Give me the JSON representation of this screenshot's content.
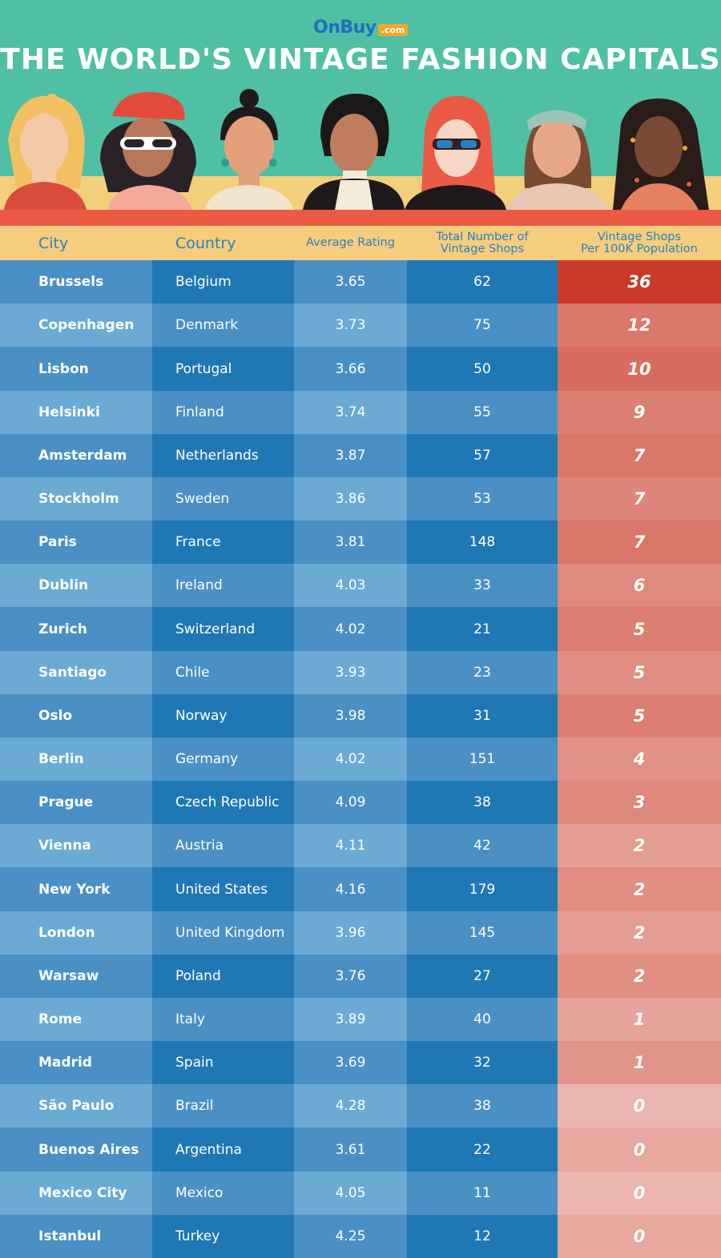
{
  "logo": {
    "brand": "OnBuy",
    "suffix": ".com"
  },
  "colors": {
    "teal": "#4fc0a4",
    "header_yellow": "#f6cd7c",
    "header_text": "#2b7fc1",
    "red_band": "#ea5a44",
    "blue_dark": "#1f78b4",
    "blue_mid": "#4a90c4",
    "blue_light": "#6aaad3"
  },
  "chart_data": {
    "type": "table",
    "title": "THE WORLD'S VINTAGE FASHION CAPITALS",
    "columns": [
      "City",
      "Country",
      "Average Rating",
      "Total Number of Vintage Shops",
      "Vintage Shops Per 100K Population"
    ],
    "column_lines": [
      [
        "City"
      ],
      [
        "Country"
      ],
      [
        "Average Rating"
      ],
      [
        "Total Number of",
        "Vintage Shops"
      ],
      [
        "Vintage Shops",
        "Per 100K Population"
      ]
    ],
    "rows": [
      {
        "city": "Brussels",
        "country": "Belgium",
        "rating": "3.65",
        "total": "62",
        "per100k": "36"
      },
      {
        "city": "Copenhagen",
        "country": "Denmark",
        "rating": "3.73",
        "total": "75",
        "per100k": "12"
      },
      {
        "city": "Lisbon",
        "country": "Portugal",
        "rating": "3.66",
        "total": "50",
        "per100k": "10"
      },
      {
        "city": "Helsinki",
        "country": "Finland",
        "rating": "3.74",
        "total": "55",
        "per100k": "9"
      },
      {
        "city": "Amsterdam",
        "country": "Netherlands",
        "rating": "3.87",
        "total": "57",
        "per100k": "7"
      },
      {
        "city": "Stockholm",
        "country": "Sweden",
        "rating": "3.86",
        "total": "53",
        "per100k": "7"
      },
      {
        "city": "Paris",
        "country": "France",
        "rating": "3.81",
        "total": "148",
        "per100k": "7"
      },
      {
        "city": "Dublin",
        "country": "Ireland",
        "rating": "4.03",
        "total": "33",
        "per100k": "6"
      },
      {
        "city": "Zurich",
        "country": "Switzerland",
        "rating": "4.02",
        "total": "21",
        "per100k": "5"
      },
      {
        "city": "Santiago",
        "country": "Chile",
        "rating": "3.93",
        "total": "23",
        "per100k": "5"
      },
      {
        "city": "Oslo",
        "country": "Norway",
        "rating": "3.98",
        "total": "31",
        "per100k": "5"
      },
      {
        "city": "Berlin",
        "country": "Germany",
        "rating": "4.02",
        "total": "151",
        "per100k": "4"
      },
      {
        "city": "Prague",
        "country": "Czech Republic",
        "rating": "4.09",
        "total": "38",
        "per100k": "3"
      },
      {
        "city": "Vienna",
        "country": "Austria",
        "rating": "4.11",
        "total": "42",
        "per100k": "2"
      },
      {
        "city": "New York",
        "country": "United States",
        "rating": "4.16",
        "total": "179",
        "per100k": "2"
      },
      {
        "city": "London",
        "country": "United Kingdom",
        "rating": "3.96",
        "total": "145",
        "per100k": "2"
      },
      {
        "city": "Warsaw",
        "country": "Poland",
        "rating": "3.76",
        "total": "27",
        "per100k": "2"
      },
      {
        "city": "Rome",
        "country": "Italy",
        "rating": "3.89",
        "total": "40",
        "per100k": "1"
      },
      {
        "city": "Madrid",
        "country": "Spain",
        "rating": "3.69",
        "total": "32",
        "per100k": "1"
      },
      {
        "city": "São Paulo",
        "country": "Brazil",
        "rating": "4.28",
        "total": "38",
        "per100k": "0"
      },
      {
        "city": "Buenos Aires",
        "country": "Argentina",
        "rating": "3.61",
        "total": "22",
        "per100k": "0"
      },
      {
        "city": "Mexico City",
        "country": "Mexico",
        "rating": "4.05",
        "total": "11",
        "per100k": "0"
      },
      {
        "city": "Istanbul",
        "country": "Turkey",
        "rating": "4.25",
        "total": "12",
        "per100k": "0"
      }
    ]
  }
}
